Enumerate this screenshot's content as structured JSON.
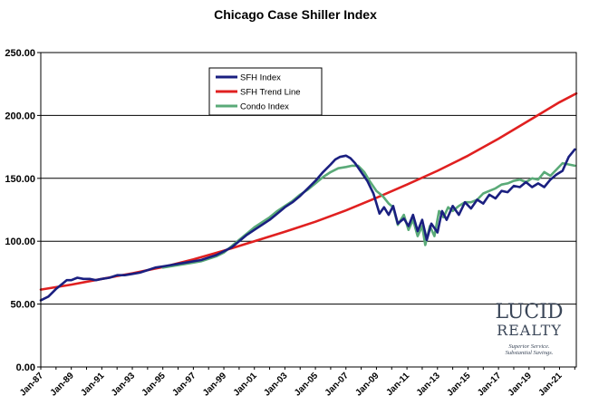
{
  "chart_data": {
    "type": "line",
    "title": "Chicago Case Shiller Index",
    "xlabel": "",
    "ylabel": "",
    "ylim": [
      0,
      250
    ],
    "xlim": [
      1987.0,
      2022.1
    ],
    "yticks": [
      "0.00",
      "50.00",
      "100.00",
      "150.00",
      "200.00",
      "250.00"
    ],
    "xticks": [
      {
        "label": "Jan-87",
        "x": 1987
      },
      {
        "label": "Jan-89",
        "x": 1989
      },
      {
        "label": "Jan-91",
        "x": 1991
      },
      {
        "label": "Jan-93",
        "x": 1993
      },
      {
        "label": "Jan-95",
        "x": 1995
      },
      {
        "label": "Jan-97",
        "x": 1997
      },
      {
        "label": "Jan-99",
        "x": 1999
      },
      {
        "label": "Jan-01",
        "x": 2001
      },
      {
        "label": "Jan-03",
        "x": 2003
      },
      {
        "label": "Jan-05",
        "x": 2005
      },
      {
        "label": "Jan-07",
        "x": 2007
      },
      {
        "label": "Jan-09",
        "x": 2009
      },
      {
        "label": "Jan-11",
        "x": 2011
      },
      {
        "label": "Jan-13",
        "x": 2013
      },
      {
        "label": "Jan-15",
        "x": 2015
      },
      {
        "label": "Jan-17",
        "x": 2017
      },
      {
        "label": "Jan-19",
        "x": 2019
      },
      {
        "label": "Jan-21",
        "x": 2021
      }
    ],
    "grid": "horizontal",
    "legend_position": "top-left",
    "series": [
      {
        "name": "SFH Index",
        "color": "#1a1f80",
        "x": [
          1987.0,
          1987.5,
          1988.0,
          1988.3,
          1988.7,
          1989.0,
          1989.4,
          1989.8,
          1990.2,
          1990.6,
          1991.0,
          1991.5,
          1992.0,
          1992.5,
          1993.0,
          1993.5,
          1994.0,
          1994.5,
          1995.0,
          1995.5,
          1996.0,
          1996.5,
          1997.0,
          1997.5,
          1998.0,
          1998.5,
          1999.0,
          1999.5,
          2000.0,
          2000.5,
          2001.0,
          2001.5,
          2002.0,
          2002.5,
          2003.0,
          2003.5,
          2004.0,
          2004.5,
          2005.0,
          2005.5,
          2006.0,
          2006.3,
          2006.6,
          2007.0,
          2007.3,
          2007.6,
          2008.0,
          2008.4,
          2008.8,
          2009.2,
          2009.5,
          2009.8,
          2010.1,
          2010.4,
          2010.8,
          2011.1,
          2011.4,
          2011.7,
          2012.0,
          2012.3,
          2012.6,
          2013.0,
          2013.3,
          2013.6,
          2014.0,
          2014.4,
          2014.8,
          2015.2,
          2015.6,
          2016.0,
          2016.4,
          2016.8,
          2017.2,
          2017.6,
          2018.0,
          2018.4,
          2018.8,
          2019.2,
          2019.6,
          2020.0,
          2020.4,
          2020.8,
          2021.2,
          2021.6,
          2022.0
        ],
        "values": [
          53,
          56,
          62,
          65,
          69,
          69,
          71,
          70,
          70,
          69,
          70,
          71,
          73,
          73,
          74,
          75,
          77,
          79,
          80,
          81,
          82,
          83,
          84,
          85,
          87,
          89,
          92,
          95,
          100,
          105,
          109,
          113,
          117,
          122,
          127,
          131,
          136,
          142,
          148,
          155,
          161,
          165,
          167,
          168,
          166,
          162,
          155,
          148,
          138,
          122,
          127,
          121,
          128,
          114,
          118,
          112,
          121,
          108,
          117,
          101,
          114,
          107,
          124,
          117,
          128,
          121,
          131,
          126,
          133,
          130,
          137,
          134,
          140,
          139,
          144,
          143,
          147,
          143,
          146,
          143,
          149,
          153,
          156,
          167,
          173
        ]
      },
      {
        "name": "SFH Trend Line",
        "color": "#e02020",
        "x": [
          1987.0,
          1989.0,
          1991.0,
          1993.0,
          1995.0,
          1997.0,
          1999.0,
          2001.0,
          2003.0,
          2005.0,
          2007.0,
          2009.0,
          2011.0,
          2013.0,
          2015.0,
          2017.0,
          2019.0,
          2021.0,
          2022.1
        ],
        "values": [
          61.5,
          65.5,
          70.0,
          74.5,
          79.5,
          85.5,
          92.5,
          100.0,
          107.5,
          115.5,
          124.5,
          134.5,
          145.0,
          156.0,
          168.0,
          181.5,
          196.0,
          210.5,
          217.5
        ]
      },
      {
        "name": "Condo Index",
        "color": "#5aaa78",
        "x": [
          1995.0,
          1995.5,
          1996.0,
          1996.5,
          1997.0,
          1997.5,
          1998.0,
          1998.5,
          1999.0,
          1999.5,
          2000.0,
          2000.5,
          2001.0,
          2001.5,
          2002.0,
          2002.5,
          2003.0,
          2003.5,
          2004.0,
          2004.5,
          2005.0,
          2005.5,
          2006.0,
          2006.5,
          2007.0,
          2007.4,
          2007.8,
          2008.2,
          2008.6,
          2009.0,
          2009.4,
          2009.8,
          2010.1,
          2010.4,
          2010.8,
          2011.1,
          2011.4,
          2011.7,
          2012.0,
          2012.2,
          2012.5,
          2012.8,
          2013.1,
          2013.4,
          2013.7,
          2014.0,
          2014.4,
          2014.8,
          2015.2,
          2015.6,
          2016.0,
          2016.4,
          2016.8,
          2017.2,
          2017.6,
          2018.0,
          2018.4,
          2018.8,
          2019.2,
          2019.6,
          2020.0,
          2020.4,
          2020.8,
          2021.2,
          2021.6,
          2022.0
        ],
        "values": [
          79,
          80,
          81,
          82,
          83,
          84,
          86,
          88,
          91,
          96,
          101,
          106,
          111,
          115,
          119,
          124,
          128,
          132,
          137,
          141,
          146,
          151,
          155,
          158,
          159,
          160,
          160,
          155,
          147,
          140,
          136,
          130,
          127,
          113,
          121,
          109,
          117,
          104,
          112,
          97,
          112,
          104,
          124,
          119,
          127,
          124,
          128,
          131,
          131,
          133,
          138,
          140,
          142,
          145,
          146,
          148,
          149,
          147,
          150,
          149,
          155,
          152,
          157,
          162,
          161,
          160
        ]
      }
    ]
  },
  "logo": {
    "line1": "LUCID",
    "line2": "REALTY",
    "tagline1": "Superior Service.",
    "tagline2": "Substantial Savings."
  }
}
